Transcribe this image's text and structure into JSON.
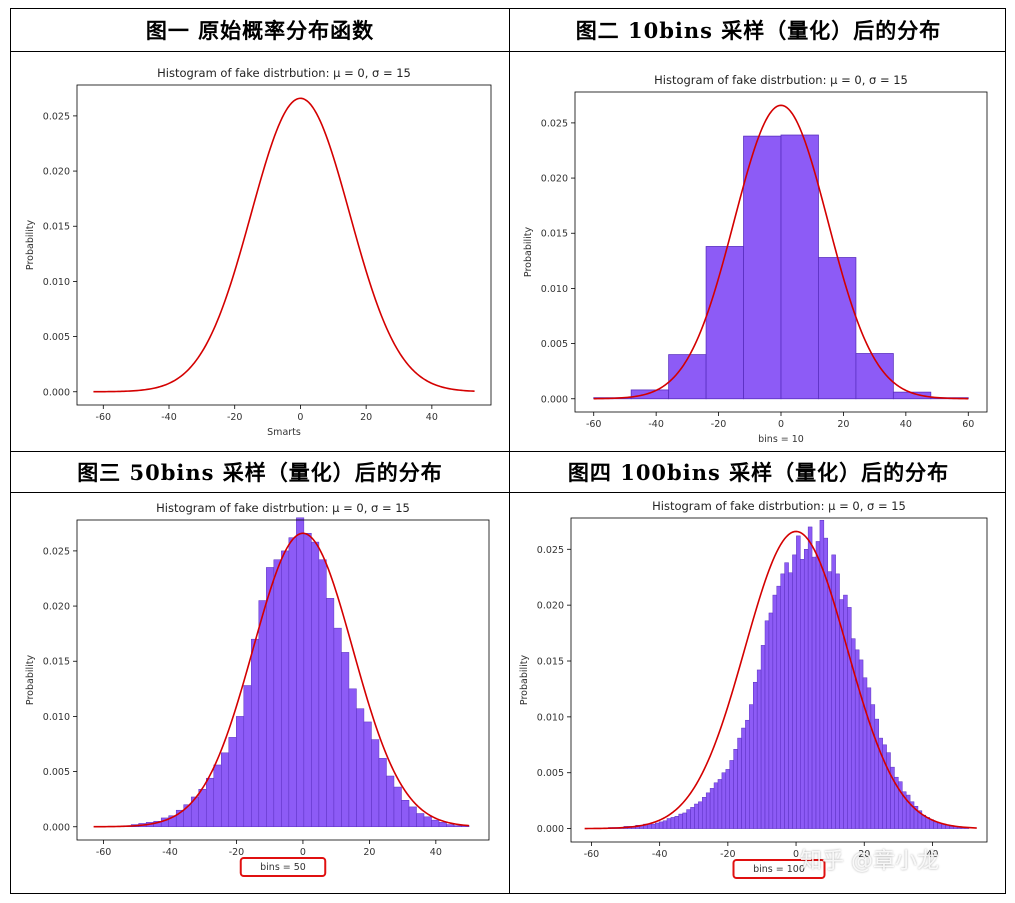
{
  "captions": [
    "图一  原始概率分布函数",
    "图二  10bins 采样（量化）后的分布",
    "图三 50bins 采样（量化）后的分布",
    "图四 100bins 采样（量化）后的分布"
  ],
  "watermark": "知乎 @章小龙",
  "colors": {
    "bar_fill": "#8d5bf6",
    "bar_edge": "#5a2fc0",
    "curve": "#d40000",
    "highlight": "#e01010"
  },
  "chart_data": [
    {
      "type": "line",
      "title": "Histogram of fake distrbution: μ = 0, σ = 15",
      "xlabel": "Smarts",
      "ylabel": "Probability",
      "xlim": [
        -68,
        58
      ],
      "ylim": [
        -0.0012,
        0.0278
      ],
      "xticks": [
        -60,
        -40,
        -20,
        0,
        20,
        40
      ],
      "yticks": [
        0.0,
        0.005,
        0.01,
        0.015,
        0.02,
        0.025
      ],
      "ytick_labels": [
        "0.000",
        "0.005",
        "0.010",
        "0.015",
        "0.020",
        "0.025"
      ],
      "curve": {
        "mu": 0,
        "sigma": 15,
        "x_range": [
          -63,
          53
        ]
      },
      "bars": []
    },
    {
      "type": "bar",
      "title": "Histogram of fake distrbution: μ = 0, σ = 15",
      "xlabel": "bins = 10",
      "ylabel": "Probability",
      "xlim": [
        -66,
        66
      ],
      "ylim": [
        -0.0012,
        0.0278
      ],
      "xticks": [
        -60,
        -40,
        -20,
        0,
        20,
        40,
        60
      ],
      "yticks": [
        0.0,
        0.005,
        0.01,
        0.015,
        0.02,
        0.025
      ],
      "ytick_labels": [
        "0.000",
        "0.005",
        "0.010",
        "0.015",
        "0.020",
        "0.025"
      ],
      "curve": {
        "mu": 0,
        "sigma": 15,
        "x_range": [
          -60,
          60
        ]
      },
      "bins_start": -60,
      "bin_width": 12,
      "bars": [
        0.0001,
        0.0008,
        0.004,
        0.0138,
        0.0238,
        0.0239,
        0.0128,
        0.0041,
        0.0006,
        0.0001
      ]
    },
    {
      "type": "bar",
      "title": "Histogram of fake distrbution: μ = 0, σ = 15",
      "xlabel": "bins = 50",
      "ylabel": "Probability",
      "highlight_xlabel": true,
      "xlim": [
        -68,
        56
      ],
      "ylim": [
        -0.0012,
        0.0278
      ],
      "xticks": [
        -60,
        -40,
        -20,
        0,
        20,
        40
      ],
      "yticks": [
        0.0,
        0.005,
        0.01,
        0.015,
        0.02,
        0.025
      ],
      "ytick_labels": [
        "0.000",
        "0.005",
        "0.010",
        "0.015",
        "0.020",
        "0.025"
      ],
      "curve": {
        "mu": 0,
        "sigma": 15,
        "x_range": [
          -63,
          50
        ]
      },
      "bins_start": -63,
      "bin_width": 2.26,
      "bars": [
        0.0,
        0.0,
        0.0,
        0.0,
        0.0001,
        0.0002,
        0.0003,
        0.0004,
        0.0005,
        0.0008,
        0.001,
        0.0015,
        0.002,
        0.0027,
        0.0034,
        0.0044,
        0.0056,
        0.0067,
        0.0081,
        0.01,
        0.0128,
        0.017,
        0.0205,
        0.0235,
        0.0242,
        0.025,
        0.0262,
        0.028,
        0.0266,
        0.0258,
        0.0242,
        0.0207,
        0.018,
        0.0158,
        0.0125,
        0.0107,
        0.0095,
        0.0079,
        0.0062,
        0.0046,
        0.0036,
        0.0024,
        0.0018,
        0.0012,
        0.0009,
        0.0006,
        0.0004,
        0.0002,
        0.0001,
        0.0001
      ]
    },
    {
      "type": "bar",
      "title": "Histogram of fake distrbution: μ = 0, σ = 15",
      "xlabel": "bins = 100",
      "ylabel": "Probability",
      "highlight_xlabel": true,
      "xlim": [
        -66,
        56
      ],
      "ylim": [
        -0.0012,
        0.0278
      ],
      "xticks": [
        -60,
        -40,
        -20,
        0,
        20,
        40
      ],
      "yticks": [
        0.0,
        0.005,
        0.01,
        0.015,
        0.02,
        0.025
      ],
      "ytick_labels": [
        "0.000",
        "0.005",
        "0.010",
        "0.015",
        "0.020",
        "0.025"
      ],
      "curve": {
        "mu": 0,
        "sigma": 15,
        "x_range": [
          -62,
          53
        ]
      },
      "bins_start": -62,
      "bin_width": 1.15,
      "bars": [
        0.0,
        0.0,
        0.0,
        0.0,
        0.0,
        0.0,
        0.0001,
        0.0001,
        0.0001,
        0.0001,
        0.0002,
        0.0002,
        0.0002,
        0.0003,
        0.0003,
        0.0004,
        0.0004,
        0.0004,
        0.0005,
        0.0006,
        0.0007,
        0.0009,
        0.001,
        0.0011,
        0.0013,
        0.0014,
        0.0017,
        0.0019,
        0.0022,
        0.0024,
        0.0028,
        0.0032,
        0.0036,
        0.0041,
        0.0044,
        0.005,
        0.0053,
        0.0061,
        0.0071,
        0.0081,
        0.009,
        0.0097,
        0.0111,
        0.0131,
        0.0142,
        0.0164,
        0.0186,
        0.0193,
        0.0209,
        0.0217,
        0.0228,
        0.0238,
        0.0229,
        0.0245,
        0.0262,
        0.0241,
        0.025,
        0.027,
        0.0243,
        0.0257,
        0.0276,
        0.026,
        0.023,
        0.0245,
        0.0228,
        0.0205,
        0.0209,
        0.0198,
        0.017,
        0.016,
        0.0151,
        0.0135,
        0.0126,
        0.0111,
        0.0098,
        0.0081,
        0.0075,
        0.0068,
        0.0055,
        0.0046,
        0.0042,
        0.0033,
        0.003,
        0.0024,
        0.002,
        0.0016,
        0.0012,
        0.001,
        0.0008,
        0.0006,
        0.0005,
        0.0004,
        0.0003,
        0.0002,
        0.0002,
        0.0001,
        0.0001,
        0.0001,
        0.0,
        0.0
      ]
    }
  ]
}
